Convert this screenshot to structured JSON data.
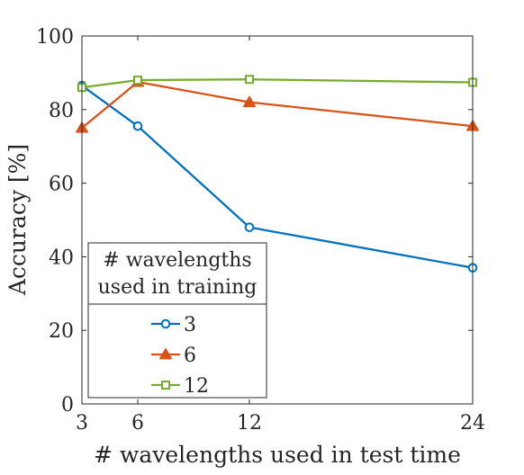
{
  "chart_data": {
    "type": "line",
    "title": "",
    "xlabel": "# wavelengths used in test time",
    "ylabel": "Accuracy [%]",
    "xlim": [
      3,
      24
    ],
    "ylim": [
      0,
      100
    ],
    "xticks": [
      3,
      6,
      12,
      24
    ],
    "yticks": [
      0,
      20,
      40,
      60,
      80,
      100
    ],
    "grid": false,
    "legend": {
      "placement": "bottom-left",
      "title_lines": [
        "# wavelengths",
        "used in training"
      ]
    },
    "x": [
      3,
      6,
      12,
      24
    ],
    "series": [
      {
        "name": "3",
        "values": [
          86.5,
          75.5,
          48.0,
          37.0
        ],
        "color": "#0072BD",
        "marker": "circle"
      },
      {
        "name": "6",
        "values": [
          75.0,
          87.5,
          82.0,
          75.5
        ],
        "color": "#D95319",
        "marker": "triangle"
      },
      {
        "name": "12",
        "values": [
          86.0,
          88.0,
          88.2,
          87.4
        ],
        "color": "#77AC30",
        "marker": "square"
      }
    ]
  }
}
